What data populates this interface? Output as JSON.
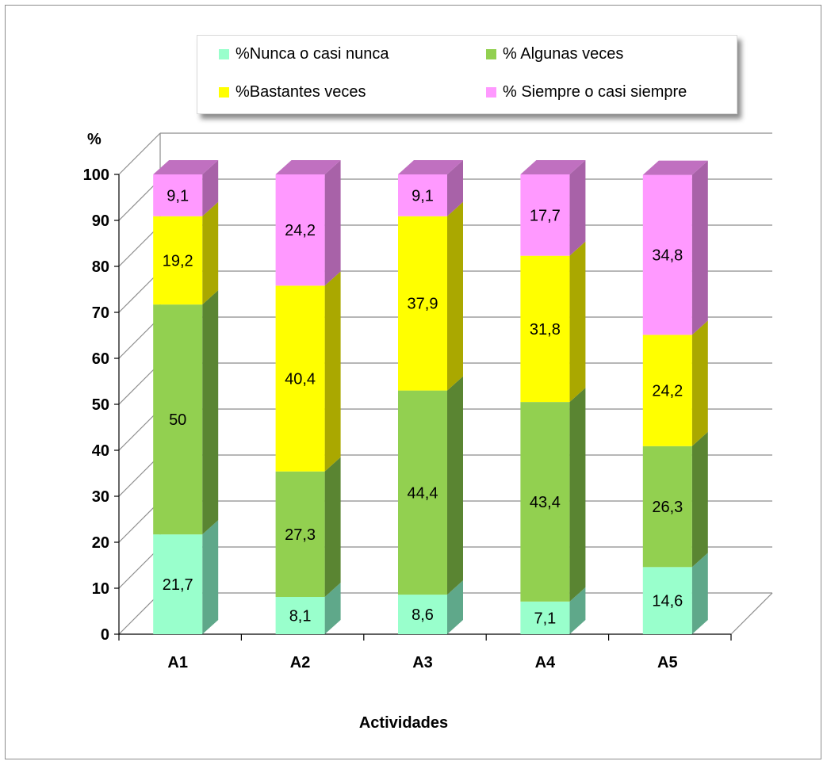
{
  "chart_data": {
    "type": "bar",
    "stacked": true,
    "three_d": true,
    "categories": [
      "A1",
      "A2",
      "A3",
      "A4",
      "A5"
    ],
    "series": [
      {
        "name": "%Nunca o casi nunca",
        "color": "#99ffcc",
        "side_color": "#5fa88a",
        "top_color": "#7ddbb0",
        "values": [
          21.7,
          8.1,
          8.6,
          7.1,
          14.6
        ],
        "labels": [
          "21,7",
          "8,1",
          "8,6",
          "7,1",
          "14,6"
        ]
      },
      {
        "name": "% Algunas veces",
        "color": "#92d050",
        "side_color": "#5a8532",
        "top_color": "#7cb844",
        "values": [
          50,
          27.3,
          44.4,
          43.4,
          26.3
        ],
        "labels": [
          "50",
          "27,3",
          "44,4",
          "43,4",
          "26,3"
        ]
      },
      {
        "name": "%Bastantes veces",
        "color": "#ffff00",
        "side_color": "#aaa800",
        "top_color": "#d8d600",
        "values": [
          19.2,
          40.4,
          37.9,
          31.8,
          24.2
        ],
        "labels": [
          "19,2",
          "40,4",
          "37,9",
          "31,8",
          "24,2"
        ]
      },
      {
        "name": "% Siempre o casi siempre",
        "color": "#ff99ff",
        "side_color": "#a862a8",
        "top_color": "#c070c0",
        "values": [
          9.1,
          24.2,
          9.1,
          17.7,
          34.8
        ],
        "labels": [
          "9,1",
          "24,2",
          "9,1",
          "17,7",
          "34,8"
        ]
      }
    ],
    "ylim": [
      0,
      100
    ],
    "yticks": [
      "0",
      "10",
      "20",
      "30",
      "40",
      "50",
      "60",
      "70",
      "80",
      "90",
      "100"
    ],
    "ylabel": "%",
    "xlabel": "Actividades",
    "grid": true,
    "legend_position": "top"
  }
}
